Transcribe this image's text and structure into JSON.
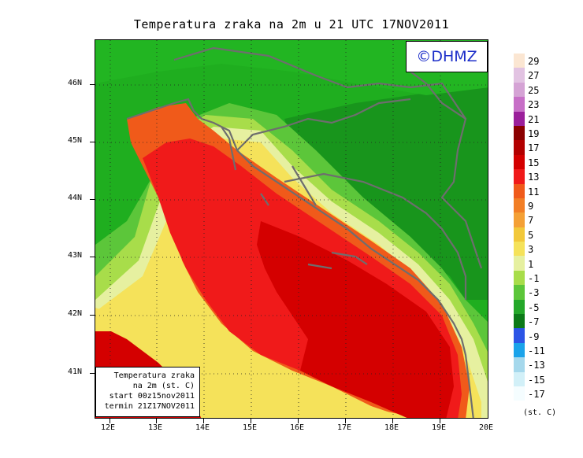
{
  "title": "Temperatura zraka na 2m u 21 UTC 17NOV2011",
  "logo_text": "©DHMZ",
  "info_box": [
    "Temperatura zraka",
    "na 2m (st. C)",
    "start 00z15nov2011",
    "termin 21Z17NOV2011"
  ],
  "lat_labels": [
    "46N",
    "45N",
    "44N",
    "43N",
    "42N",
    "41N"
  ],
  "lon_labels": [
    "12E",
    "13E",
    "14E",
    "15E",
    "16E",
    "17E",
    "18E",
    "19E",
    "20E"
  ],
  "legend": {
    "labels": [
      "29",
      "27",
      "25",
      "23",
      "21",
      "19",
      "17",
      "15",
      "13",
      "11",
      "9",
      "7",
      "5",
      "3",
      "1",
      "-1",
      "-3",
      "-5",
      "-7",
      "-9",
      "-11",
      "-13",
      "-15",
      "-17"
    ],
    "colors": [
      "#fbe6d2",
      "#e2c3e2",
      "#d5a3d5",
      "#c76fc7",
      "#9b1f9b",
      "#8b0000",
      "#b30000",
      "#d40000",
      "#f01a1a",
      "#f05a1a",
      "#f27e25",
      "#f4a035",
      "#f2c83a",
      "#f5e25a",
      "#e6f0a0",
      "#a8dd4a",
      "#5cc63a",
      "#24a82a",
      "#0c7a18",
      "#2c55e6",
      "#1aa3ea",
      "#a5d8ec",
      "#d2f0f8",
      "#f5fdff"
    ],
    "unit": "(st. C)"
  }
}
